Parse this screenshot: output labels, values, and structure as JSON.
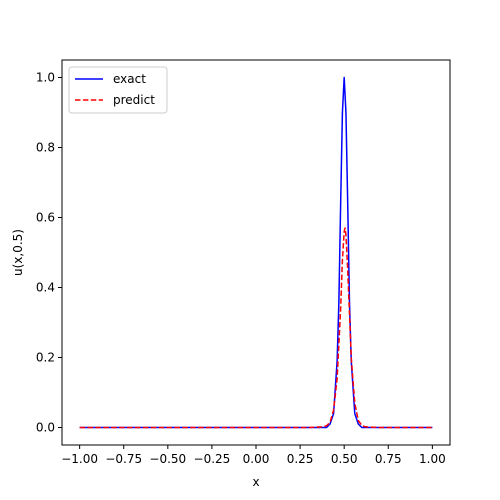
{
  "chart_data": {
    "type": "line",
    "title": "",
    "xlabel": "x",
    "ylabel": "u(x,0.5)",
    "xlim": [
      -1.1,
      1.1
    ],
    "ylim": [
      -0.05,
      1.05
    ],
    "xticks": [
      -1.0,
      -0.75,
      -0.5,
      -0.25,
      0.0,
      0.25,
      0.5,
      0.75,
      1.0
    ],
    "xtick_labels": [
      "−1.00",
      "−0.75",
      "−0.50",
      "−0.25",
      "0.00",
      "0.25",
      "0.50",
      "0.75",
      "1.00"
    ],
    "yticks": [
      0.0,
      0.2,
      0.4,
      0.6,
      0.8,
      1.0
    ],
    "ytick_labels": [
      "0.0",
      "0.2",
      "0.4",
      "0.6",
      "0.8",
      "1.0"
    ],
    "grid": false,
    "legend_position": "top-left",
    "series": [
      {
        "name": "exact",
        "color": "#0000ff",
        "style": "solid",
        "x": [
          -1.0,
          0.3,
          0.4,
          0.42,
          0.44,
          0.46,
          0.47,
          0.48,
          0.49,
          0.5,
          0.51,
          0.52,
          0.53,
          0.54,
          0.56,
          0.58,
          0.6,
          0.7,
          1.0
        ],
        "y": [
          0.0,
          0.0,
          0.0,
          0.01,
          0.04,
          0.19,
          0.36,
          0.64,
          0.9,
          1.0,
          0.9,
          0.64,
          0.36,
          0.19,
          0.04,
          0.01,
          0.0,
          0.0,
          0.0
        ]
      },
      {
        "name": "predict",
        "color": "#ff0000",
        "style": "dashed",
        "x": [
          -1.0,
          0.3,
          0.38,
          0.4,
          0.42,
          0.44,
          0.46,
          0.48,
          0.49,
          0.5,
          0.505,
          0.51,
          0.52,
          0.54,
          0.56,
          0.58,
          0.6,
          0.62,
          0.7,
          1.0
        ],
        "y": [
          0.0,
          0.0,
          0.002,
          0.005,
          0.015,
          0.05,
          0.14,
          0.34,
          0.48,
          0.56,
          0.57,
          0.55,
          0.45,
          0.2,
          0.07,
          0.02,
          0.006,
          0.002,
          0.0,
          0.0
        ]
      }
    ]
  }
}
